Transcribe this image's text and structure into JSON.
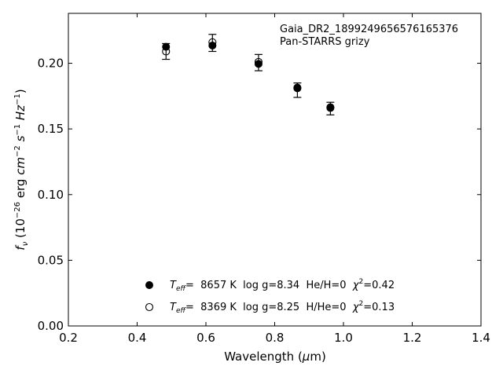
{
  "chart_data": {
    "type": "scatter",
    "annotation": [
      "Gaia_DR2_1899249656576165376",
      "Pan-STARRS grizy"
    ],
    "xlabel": "Wavelength (μm)",
    "ylabel": "f_ν (10^-26 erg cm^-2 s^-1 Hz^-1)",
    "xlim": [
      0.2,
      1.4
    ],
    "ylim": [
      0.0,
      0.238
    ],
    "xticks": [
      0.2,
      0.4,
      0.6,
      0.8,
      1.0,
      1.2,
      1.4
    ],
    "xtick_labels": [
      "0.2",
      "0.4",
      "0.6",
      "0.8",
      "1.0",
      "1.2",
      "1.4"
    ],
    "yticks": [
      0.0,
      0.05,
      0.1,
      0.15,
      0.2
    ],
    "ytick_labels": [
      "0.00",
      "0.05",
      "0.10",
      "0.15",
      "0.20"
    ],
    "grid": false,
    "legend_position": "bottom-center",
    "observed": [
      {
        "x": 0.484,
        "y": 0.209,
        "yerr": 0.006
      },
      {
        "x": 0.619,
        "y": 0.2155,
        "yerr": 0.0065
      },
      {
        "x": 0.753,
        "y": 0.2005,
        "yerr": 0.0062
      },
      {
        "x": 0.866,
        "y": 0.1795,
        "yerr": 0.0055
      },
      {
        "x": 0.962,
        "y": 0.1655,
        "yerr": 0.0048
      }
    ],
    "series": [
      {
        "marker": "filled",
        "legend_label": {
          "param_prefix": "T",
          "param_sub": "eff",
          "text": "=  8657 K  log g=8.34  He/H=0  ",
          "chi_prefix": "χ",
          "chi_sup": "2",
          "chi_text": "=0.42"
        },
        "points": [
          {
            "x": 0.484,
            "y": 0.2125
          },
          {
            "x": 0.619,
            "y": 0.2135
          },
          {
            "x": 0.753,
            "y": 0.1995
          },
          {
            "x": 0.866,
            "y": 0.1815
          },
          {
            "x": 0.962,
            "y": 0.166
          }
        ]
      },
      {
        "marker": "open",
        "legend_label": {
          "param_prefix": "T",
          "param_sub": "eff",
          "text": "=  8369 K  log g=8.25  H/He=0  ",
          "chi_prefix": "χ",
          "chi_sup": "2",
          "chi_text": "=0.13"
        },
        "points": [
          {
            "x": 0.484,
            "y": 0.209
          },
          {
            "x": 0.619,
            "y": 0.216
          },
          {
            "x": 0.753,
            "y": 0.201
          },
          {
            "x": 0.866,
            "y": 0.181
          },
          {
            "x": 0.962,
            "y": 0.1665
          }
        ]
      }
    ]
  }
}
